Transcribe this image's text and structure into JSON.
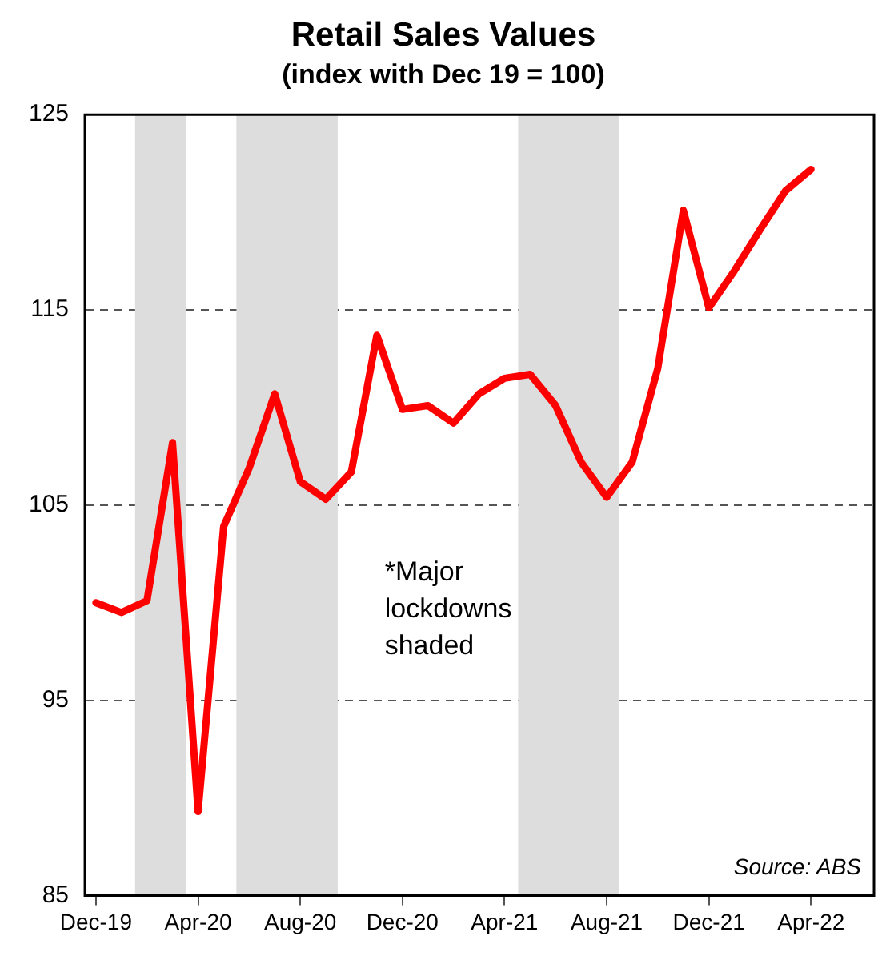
{
  "chart_data": {
    "type": "line",
    "title": "Retail Sales Values",
    "subtitle": "(index with Dec 19 = 100)",
    "x": [
      "2019-12",
      "2020-01",
      "2020-02",
      "2020-03",
      "2020-04",
      "2020-05",
      "2020-06",
      "2020-07",
      "2020-08",
      "2020-09",
      "2020-10",
      "2020-11",
      "2020-12",
      "2021-01",
      "2021-02",
      "2021-03",
      "2021-04",
      "2021-05",
      "2021-06",
      "2021-07",
      "2021-08",
      "2021-09",
      "2021-10",
      "2021-11",
      "2021-12",
      "2022-01",
      "2022-02",
      "2022-03",
      "2022-04"
    ],
    "series": [
      {
        "color": "#ff0000",
        "values": [
          100.0,
          99.5,
          100.1,
          108.2,
          89.3,
          103.9,
          106.9,
          110.7,
          106.2,
          105.3,
          106.7,
          113.7,
          109.9,
          110.1,
          109.2,
          110.7,
          111.5,
          111.7,
          110.1,
          107.2,
          105.4,
          107.2,
          112.0,
          120.1,
          115.1,
          117.0,
          119.1,
          121.1,
          122.2
        ]
      }
    ],
    "xlim": [
      "2019-11-18",
      "2022-06-15"
    ],
    "xticks": [
      {
        "value": "2019-12",
        "label": "Dec-19"
      },
      {
        "value": "2020-04",
        "label": "Apr-20"
      },
      {
        "value": "2020-08",
        "label": "Aug-20"
      },
      {
        "value": "2020-12",
        "label": "Dec-20"
      },
      {
        "value": "2021-04",
        "label": "Apr-21"
      },
      {
        "value": "2021-08",
        "label": "Aug-21"
      },
      {
        "value": "2021-12",
        "label": "Dec-21"
      },
      {
        "value": "2022-04",
        "label": "Apr-22"
      }
    ],
    "ylim": [
      85,
      125
    ],
    "yticks": [
      85,
      95,
      105,
      115,
      125
    ],
    "bands": [
      {
        "axis": "x",
        "from": "2020-01-17",
        "to": "2020-03-17",
        "color": "#dddddd"
      },
      {
        "axis": "x",
        "from": "2020-05-16",
        "to": "2020-09-15",
        "color": "#dddddd"
      },
      {
        "axis": "x",
        "from": "2021-04-17",
        "to": "2021-08-15",
        "color": "#dddddd"
      }
    ],
    "annotations": [
      "*Major lockdowns shaded",
      "Source: ABS"
    ],
    "grid": "y",
    "marker": "none",
    "line_style": "solid"
  }
}
